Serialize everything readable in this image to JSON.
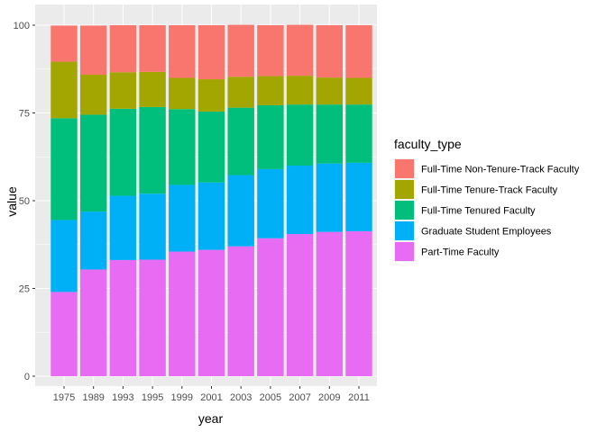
{
  "chart_data": {
    "type": "bar",
    "stacked": true,
    "categories": [
      "1975",
      "1989",
      "1993",
      "1995",
      "1999",
      "2001",
      "2003",
      "2005",
      "2007",
      "2009",
      "2011"
    ],
    "series": [
      {
        "name": "Part-Time Faculty",
        "color": "#E76BF3",
        "values": [
          24.0,
          30.4,
          33.1,
          33.2,
          35.5,
          36.0,
          37.0,
          39.3,
          40.5,
          41.1,
          41.3
        ]
      },
      {
        "name": "Graduate Student Employees",
        "color": "#00B0F6",
        "values": [
          20.5,
          16.5,
          18.3,
          18.8,
          19.0,
          19.2,
          20.3,
          19.7,
          19.5,
          19.5,
          19.5
        ]
      },
      {
        "name": "Full-Time Tenured Faculty",
        "color": "#00BF7D",
        "values": [
          29.0,
          27.6,
          24.8,
          24.7,
          21.6,
          20.2,
          19.2,
          18.2,
          17.4,
          16.8,
          16.6
        ]
      },
      {
        "name": "Full-Time Tenure-Track Faculty",
        "color": "#A3A500",
        "values": [
          16.1,
          11.4,
          10.4,
          10.0,
          8.9,
          9.2,
          8.8,
          8.3,
          8.2,
          7.7,
          7.6
        ]
      },
      {
        "name": "Full-Time Non-Tenure-Track Faculty",
        "color": "#F8766D",
        "values": [
          10.3,
          14.0,
          13.4,
          13.3,
          15.0,
          15.4,
          14.8,
          14.5,
          14.5,
          14.9,
          15.0
        ]
      }
    ],
    "legend_order": [
      "Full-Time Non-Tenure-Track Faculty",
      "Full-Time Tenure-Track Faculty",
      "Full-Time Tenured Faculty",
      "Graduate Student Employees",
      "Part-Time Faculty"
    ],
    "legend_title": "faculty_type",
    "legend_position": "right",
    "xlabel": "year",
    "ylabel": "value",
    "ylim": [
      0,
      100
    ],
    "yticks": [
      0,
      25,
      50,
      75,
      100
    ],
    "grid": true,
    "panel_background": "#EBEBEB",
    "grid_color": "#FFFFFF"
  }
}
